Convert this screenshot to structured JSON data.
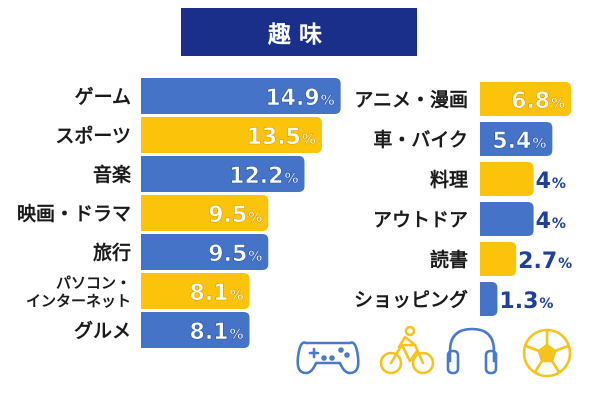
{
  "title": "趣味",
  "colors": {
    "title_bg": "#1a2f8a",
    "blue": "#4573c8",
    "yellow": "#fbc30a",
    "text_on_bar": "#ffffff",
    "outline_value": "#1f3f9a",
    "label": "#1a1a1a",
    "icon_blue": "#4a79cc",
    "icon_yellow": "#f6c21c"
  },
  "chart_data": [
    {
      "type": "bar",
      "orientation": "horizontal",
      "unit": "%",
      "xlim": [
        0,
        15
      ],
      "categories": [
        "ゲーム",
        "スポーツ",
        "音楽",
        "映画・ドラマ",
        "旅行",
        "パソコン・インターネット",
        "グルメ"
      ],
      "category_lines": [
        [
          "ゲーム"
        ],
        [
          "スポーツ"
        ],
        [
          "音楽"
        ],
        [
          "映画・ドラマ"
        ],
        [
          "旅行"
        ],
        [
          "パソコン・",
          "インターネット"
        ],
        [
          "グルメ"
        ]
      ],
      "values": [
        14.9,
        13.5,
        12.2,
        9.5,
        9.5,
        8.1,
        8.1
      ],
      "bar_colors": [
        "blue",
        "yellow",
        "blue",
        "yellow",
        "blue",
        "yellow",
        "blue"
      ],
      "grid": false,
      "legend": "none"
    },
    {
      "type": "bar",
      "orientation": "horizontal",
      "unit": "%",
      "xlim": [
        0,
        15
      ],
      "categories": [
        "アニメ・漫画",
        "車・バイク",
        "料理",
        "アウトドア",
        "読書",
        "ショッピング"
      ],
      "category_lines": [
        [
          "アニメ・漫画"
        ],
        [
          "車・バイク"
        ],
        [
          "料理"
        ],
        [
          "アウトドア"
        ],
        [
          "読書"
        ],
        [
          "ショッピング"
        ]
      ],
      "values": [
        6.8,
        5.4,
        4,
        4,
        2.7,
        1.3
      ],
      "bar_colors": [
        "yellow",
        "blue",
        "yellow",
        "blue",
        "yellow",
        "blue"
      ],
      "grid": false,
      "legend": "none"
    }
  ],
  "icons": [
    {
      "name": "game-controller-icon",
      "color": "icon_blue"
    },
    {
      "name": "cyclist-icon",
      "color": "icon_yellow"
    },
    {
      "name": "headphones-icon",
      "color": "icon_blue"
    },
    {
      "name": "soccer-ball-icon",
      "color": "icon_yellow"
    }
  ]
}
